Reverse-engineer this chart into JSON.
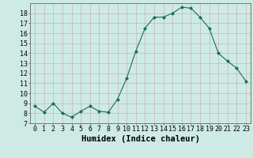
{
  "x": [
    0,
    1,
    2,
    3,
    4,
    5,
    6,
    7,
    8,
    9,
    10,
    11,
    12,
    13,
    14,
    15,
    16,
    17,
    18,
    19,
    20,
    21,
    22,
    23
  ],
  "y": [
    8.7,
    8.1,
    9.0,
    8.0,
    7.6,
    8.2,
    8.7,
    8.2,
    8.1,
    9.4,
    11.5,
    14.2,
    16.5,
    17.6,
    17.6,
    18.0,
    18.6,
    18.5,
    17.6,
    16.5,
    14.0,
    13.2,
    12.5,
    11.2
  ],
  "line_color": "#1a6b5a",
  "marker": "D",
  "marker_size": 2,
  "bg_color": "#ceeae4",
  "grid_major_color": "#c8a8a8",
  "grid_minor_color": "#ddc8c8",
  "xlabel": "Humidex (Indice chaleur)",
  "xlim": [
    -0.5,
    23.5
  ],
  "ylim": [
    7,
    19
  ],
  "yticks": [
    7,
    8,
    9,
    10,
    11,
    12,
    13,
    14,
    15,
    16,
    17,
    18
  ],
  "xticks": [
    0,
    1,
    2,
    3,
    4,
    5,
    6,
    7,
    8,
    9,
    10,
    11,
    12,
    13,
    14,
    15,
    16,
    17,
    18,
    19,
    20,
    21,
    22,
    23
  ],
  "tick_fontsize": 6.0,
  "xlabel_fontsize": 7.5
}
